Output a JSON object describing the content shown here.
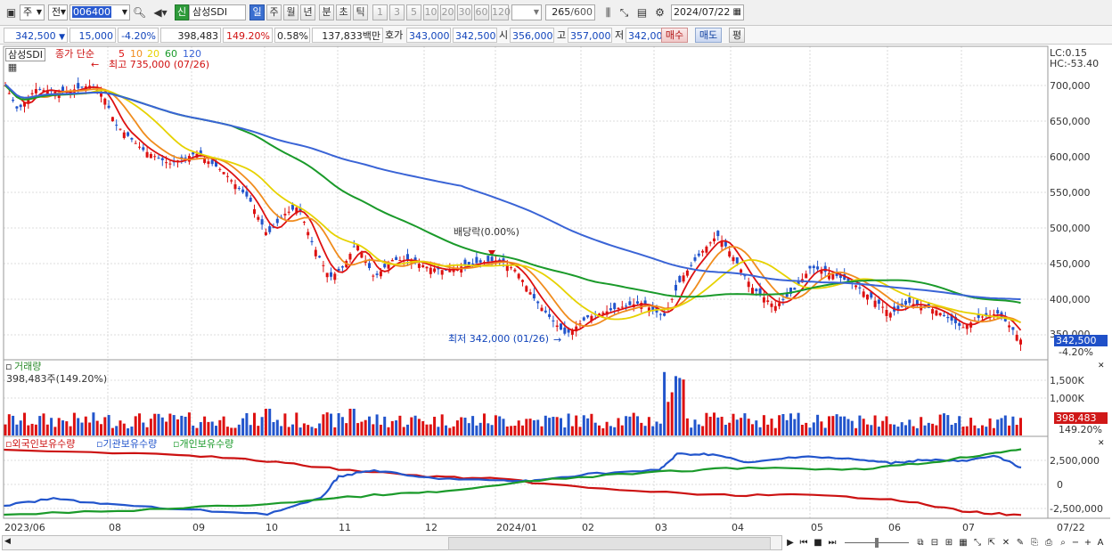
{
  "toolbar": {
    "period_main": "주",
    "type": "전",
    "code": "006400",
    "badge": "신",
    "stock_name": "삼성SDI",
    "periods": [
      "일",
      "주",
      "월",
      "년",
      "분",
      "초",
      "틱"
    ],
    "active_period": "일",
    "intervals": [
      "1",
      "3",
      "5",
      "10",
      "20",
      "30",
      "60",
      "120"
    ],
    "count": "265",
    "count_total": "/600",
    "date": "2024/07/22"
  },
  "quote": {
    "price": "342,500",
    "change": "15,000",
    "change_rate": "-4.20%",
    "volume": "398,483",
    "volume_rate": "149.20%",
    "turnover": "0.58%",
    "amount": "137,833백만",
    "hoga_label": "호가",
    "ask": "343,000",
    "bid": "342,500",
    "open_label": "시",
    "open": "356,000",
    "high_label": "고",
    "high": "357,000",
    "low_label": "저",
    "low": "342,000",
    "buy_btn": "매수",
    "sell_btn": "매도",
    "eval_btn": "평"
  },
  "price_panel": {
    "name": "삼성SDI",
    "ma_title": "종가 단순",
    "ma_labels": [
      {
        "label": "5",
        "color": "#dd1111"
      },
      {
        "label": "10",
        "color": "#f08c1e"
      },
      {
        "label": "20",
        "color": "#e6d200"
      },
      {
        "label": "60",
        "color": "#1a9a2a"
      },
      {
        "label": "120",
        "color": "#3a64d6"
      }
    ],
    "high_note": "최고 735,000 (07/26)",
    "low_note": "최저 342,000 (01/26)",
    "dividend_note": "배당락(0.00%)",
    "lc": "LC:0.15",
    "hc": "HC:-53.40",
    "price_ticks": [
      "700,000",
      "650,000",
      "600,000",
      "550,000",
      "500,000",
      "450,000",
      "400,000",
      "350,000"
    ],
    "current_badge": "342,500",
    "current_rate": "-4.20%"
  },
  "volume_panel": {
    "title": "거래량",
    "subtitle": "398,483주(149.20%)",
    "ticks": [
      "1,500K",
      "1,000K"
    ],
    "current_badge": "398,483",
    "current_rate": "149.20%"
  },
  "holding_panel": {
    "legend": [
      {
        "label": "외국인보유수량",
        "color": "#cc1111"
      },
      {
        "label": "기관보유수량",
        "color": "#2255cc"
      },
      {
        "label": "개인보유수량",
        "color": "#1a9a2a"
      }
    ],
    "ticks": [
      "2,500,000",
      "0",
      "-2,500,000"
    ]
  },
  "x_axis": {
    "labels": [
      "2023/06",
      "08",
      "09",
      "10",
      "11",
      "12",
      "2024/01",
      "02",
      "03",
      "04",
      "05",
      "06",
      "07"
    ],
    "end_label": "07/22"
  },
  "colors": {
    "up": "#dd1111",
    "down": "#2255cc",
    "badge_price": "#1f50c8",
    "badge_volume": "#d01818"
  }
}
